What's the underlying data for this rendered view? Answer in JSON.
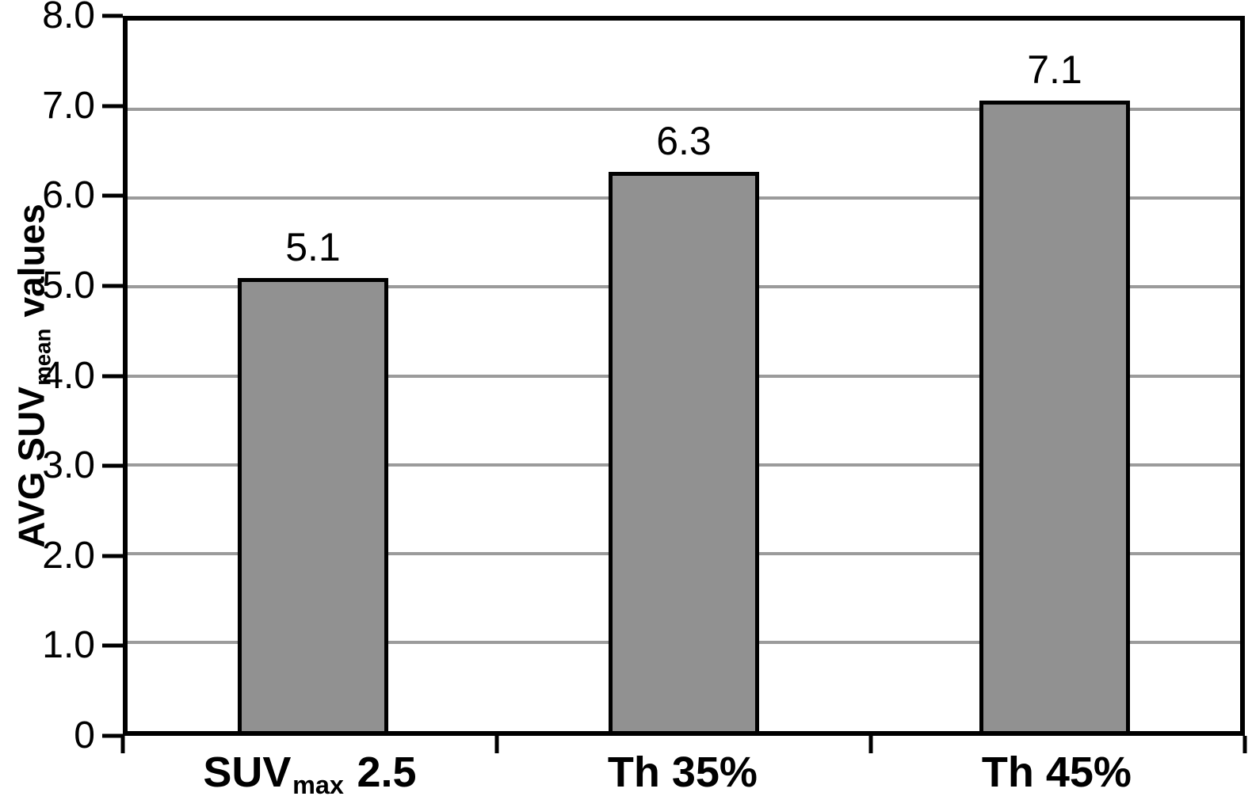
{
  "figure": {
    "background": "#ffffff"
  },
  "chart_data": {
    "type": "bar",
    "title": "",
    "categories": [
      "SUVmax 2.5",
      "Th 35%",
      "Th 45%"
    ],
    "values": [
      5.1,
      6.3,
      7.1
    ],
    "bar_labels": [
      "5.1",
      "6.3",
      "7.1"
    ],
    "xlabel": "",
    "ylabel": "AVG SUVmean values",
    "ylim": [
      0,
      8
    ],
    "ytick_interval": 1.0,
    "yticks": [
      "0",
      "1.0",
      "2.0",
      "3.0",
      "4.0",
      "5.0",
      "6.0",
      "7.0",
      "8.0"
    ],
    "grid": "horizontal-gridlines-on",
    "legend": "none",
    "bar_color": "#919191",
    "bar_border_color": "#000000",
    "gridline_color": "#9b9b9b",
    "axis_color": "#000000",
    "categories_rich": [
      {
        "pre": "SUV",
        "sub": "max",
        "post": " 2.5"
      },
      {
        "pre": "Th 35%",
        "sub": "",
        "post": ""
      },
      {
        "pre": "Th 45%",
        "sub": "",
        "post": ""
      }
    ],
    "ylabel_rich": {
      "pre": "AVG SUV",
      "sub": "mean",
      "post": " values"
    }
  }
}
